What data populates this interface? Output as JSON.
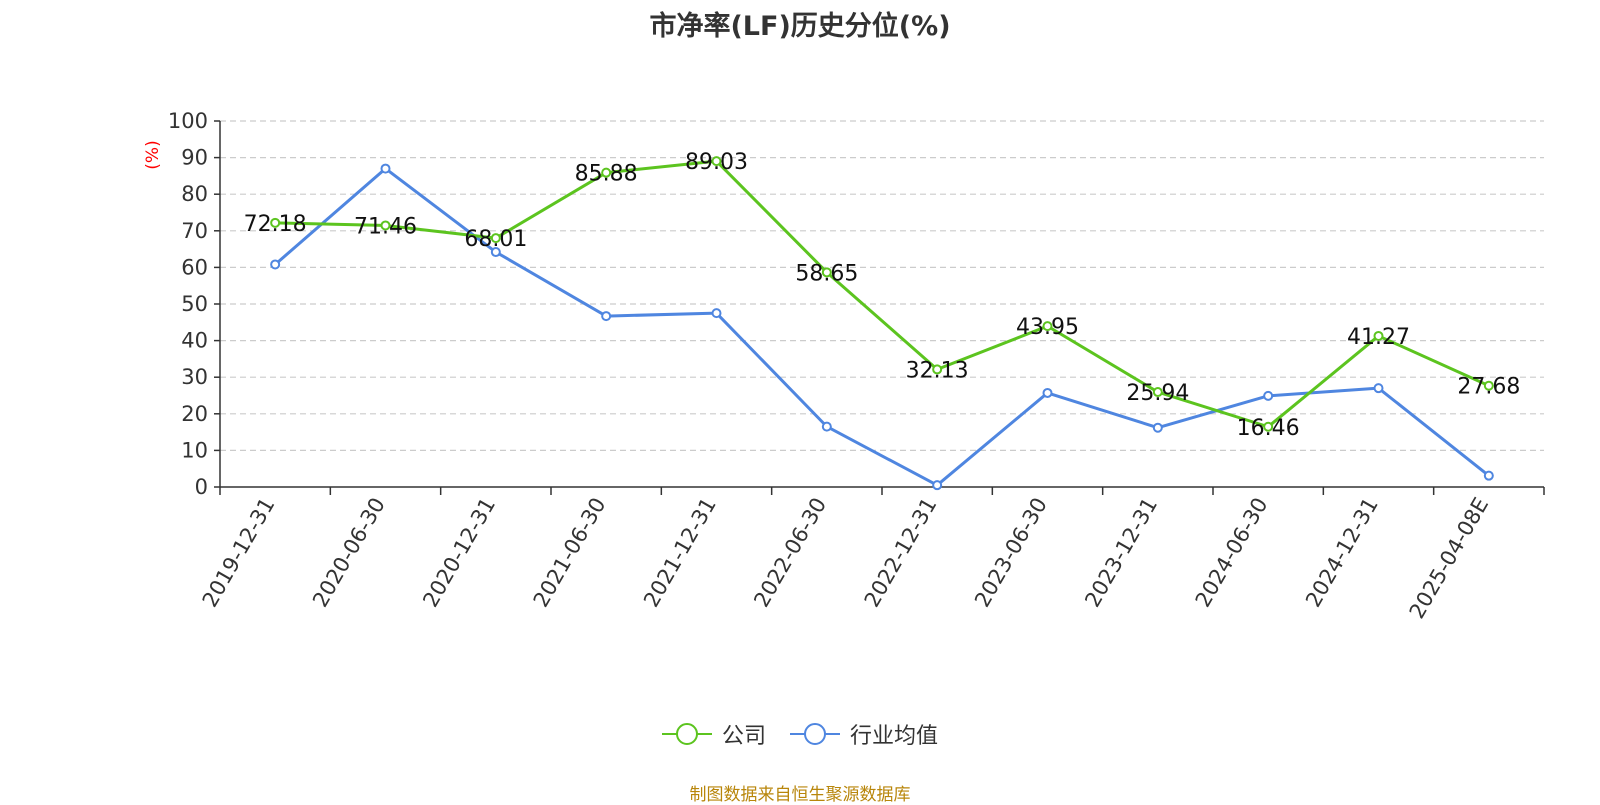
{
  "chart_data": {
    "type": "line",
    "title": "市净率(LF)历史分位(%)",
    "ylabel": "(%)",
    "ylim": [
      0,
      100
    ],
    "yticks": [
      0,
      10,
      20,
      30,
      40,
      50,
      60,
      70,
      80,
      90,
      100
    ],
    "categories": [
      "2019-12-31",
      "2020-06-30",
      "2020-12-31",
      "2021-06-30",
      "2021-12-31",
      "2022-06-30",
      "2022-12-31",
      "2023-06-30",
      "2023-12-31",
      "2024-06-30",
      "2024-12-31",
      "2025-04-08E"
    ],
    "series": [
      {
        "name": "公司",
        "color": "#5cc41f",
        "show_labels": true,
        "values": [
          72.18,
          71.46,
          68.01,
          85.88,
          89.03,
          58.65,
          32.13,
          43.95,
          25.94,
          16.46,
          41.27,
          27.68
        ],
        "labels": [
          "72.18",
          "71.46",
          "68.01",
          "85.88",
          "89.03",
          "58.65",
          "32.13",
          "43.95",
          "25.94",
          "16.46",
          "41.27",
          "27.68"
        ]
      },
      {
        "name": "行业均值",
        "color": "#4f86e0",
        "show_labels": false,
        "values": [
          60.8,
          87.0,
          64.2,
          46.7,
          47.5,
          16.5,
          0.5,
          25.7,
          16.2,
          24.9,
          27.0,
          3.1
        ]
      }
    ],
    "grid": true,
    "legend_position": "bottom-center",
    "source_note": "制图数据来自恒生聚源数据库"
  }
}
